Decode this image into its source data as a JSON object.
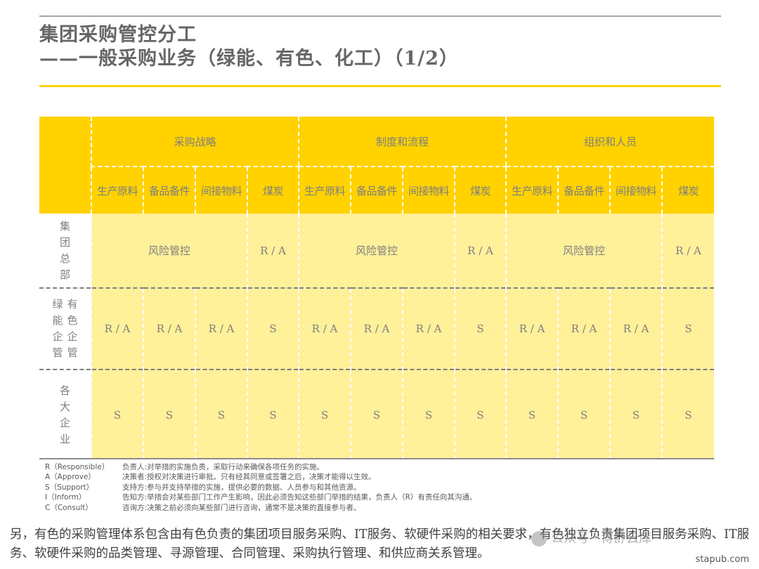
{
  "title": {
    "line1": "集团采购管控分工",
    "line2": "——一般采购业务（绿能、有色、化工）（1/2）"
  },
  "table": {
    "groups": [
      "采购战略",
      "制度和流程",
      "组织和人员"
    ],
    "sub_columns": [
      "生产原料",
      "备品备件",
      "间接物料",
      "煤炭"
    ],
    "rows": [
      {
        "label_lines": [
          "集",
          "团",
          "总",
          "部"
        ],
        "merged_label": "风险管控",
        "coal": "R / A"
      },
      {
        "label_col1": [
          "绿",
          "能",
          "企",
          "管"
        ],
        "label_col2": [
          "有",
          "色",
          "企",
          "管"
        ],
        "values": [
          "R / A",
          "R / A",
          "R / A",
          "S"
        ]
      },
      {
        "label_lines": [
          "各",
          "大",
          "企",
          "业"
        ],
        "values": [
          "S",
          "S",
          "S",
          "S"
        ]
      }
    ]
  },
  "legend": [
    {
      "key": "R（Responsible）",
      "desc": "负责人:对举措的实施负责，采取行动来确保各项任务的实施。"
    },
    {
      "key": "A（Approve）",
      "desc": "决策者:授权对决策进行审批。只有经其同意或签署之后，决策才能得以生效。"
    },
    {
      "key": "S（Support）",
      "desc": "支持方:参与并支持举措的实施，提供必要的数据、人员参与和其他资源。"
    },
    {
      "key": "I（Inform）",
      "desc": "告知方:举措会对某些部门工作产生影响，因此必须告知这些部门举措的结果，负责人（R）有责任向其沟通。"
    },
    {
      "key": "C（Consult）",
      "desc": "咨询方:决策之前必须向某些部门进行咨询，通常不是决策的直接参与者。"
    }
  ],
  "note": "另，有色的采购管理体系包含由有色负责的集团项目服务采购、IT服务、软硬件采购的相关要求，有色独立负责集团项目服务采购、IT服务、软硬件采购的品类管理、寻源管理、合同管理、采购执行管理、和供应商关系管理。",
  "watermark": "公众号 · 博舒云库",
  "site": "stapub.com",
  "colors": {
    "header_yellow": "#ffd200",
    "cell_yellow": "#fff09a",
    "red": "#c00000"
  }
}
